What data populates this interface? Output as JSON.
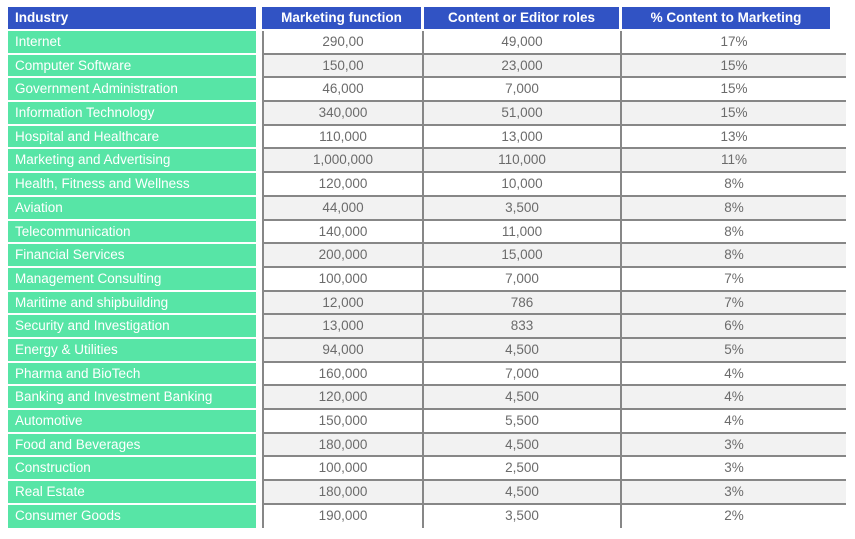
{
  "chart_data": {
    "type": "table",
    "columns": [
      "Industry",
      "Marketing function",
      "Content or Editor roles",
      "% Content to Marketing"
    ],
    "rows": [
      {
        "industry": "Internet",
        "marketing": "290,00",
        "content": "49,000",
        "percent": "17%",
        "shaded": false
      },
      {
        "industry": "Computer Software",
        "marketing": "150,00",
        "content": "23,000",
        "percent": "15%",
        "shaded": true
      },
      {
        "industry": "Government Administration",
        "marketing": "46,000",
        "content": "7,000",
        "percent": "15%",
        "shaded": false
      },
      {
        "industry": "Information Technology",
        "marketing": "340,000",
        "content": "51,000",
        "percent": "15%",
        "shaded": true
      },
      {
        "industry": "Hospital and Healthcare",
        "marketing": "110,000",
        "content": "13,000",
        "percent": "13%",
        "shaded": false
      },
      {
        "industry": "Marketing and Advertising",
        "marketing": "1,000,000",
        "content": "110,000",
        "percent": "11%",
        "shaded": true
      },
      {
        "industry": "Health, Fitness and Wellness",
        "marketing": "120,000",
        "content": "10,000",
        "percent": "8%",
        "shaded": false
      },
      {
        "industry": "Aviation",
        "marketing": "44,000",
        "content": "3,500",
        "percent": "8%",
        "shaded": true
      },
      {
        "industry": "Telecommunication",
        "marketing": "140,000",
        "content": "11,000",
        "percent": "8%",
        "shaded": false
      },
      {
        "industry": "Financial Services",
        "marketing": "200,000",
        "content": "15,000",
        "percent": "8%",
        "shaded": true
      },
      {
        "industry": "Management Consulting",
        "marketing": "100,000",
        "content": "7,000",
        "percent": "7%",
        "shaded": false
      },
      {
        "industry": "Maritime and shipbuilding",
        "marketing": "12,000",
        "content": "786",
        "percent": "7%",
        "shaded": true
      },
      {
        "industry": "Security and Investigation",
        "marketing": "13,000",
        "content": "833",
        "percent": "6%",
        "shaded": true
      },
      {
        "industry": "Energy & Utilities",
        "marketing": "94,000",
        "content": "4,500",
        "percent": "5%",
        "shaded": true
      },
      {
        "industry": "Pharma and BioTech",
        "marketing": "160,000",
        "content": "7,000",
        "percent": "4%",
        "shaded": false
      },
      {
        "industry": "Banking and Investment Banking",
        "marketing": "120,000",
        "content": "4,500",
        "percent": "4%",
        "shaded": true
      },
      {
        "industry": "Automotive",
        "marketing": "150,000",
        "content": "5,500",
        "percent": "4%",
        "shaded": false
      },
      {
        "industry": "Food and Beverages",
        "marketing": "180,000",
        "content": "4,500",
        "percent": "3%",
        "shaded": true
      },
      {
        "industry": "Construction",
        "marketing": "100,000",
        "content": "2,500",
        "percent": "3%",
        "shaded": false
      },
      {
        "industry": "Real Estate",
        "marketing": "180,000",
        "content": "4,500",
        "percent": "3%",
        "shaded": true
      },
      {
        "industry": "Consumer Goods",
        "marketing": "190,000",
        "content": "3,500",
        "percent": "2%",
        "shaded": false
      }
    ],
    "colors": {
      "header_bg": "#3153C4",
      "industry_bg": "#57E5A6",
      "shaded_row_bg": "#F2F2F2",
      "border": "#878787",
      "data_text": "#6B6B6B",
      "header_text": "#FFFFFF"
    }
  }
}
